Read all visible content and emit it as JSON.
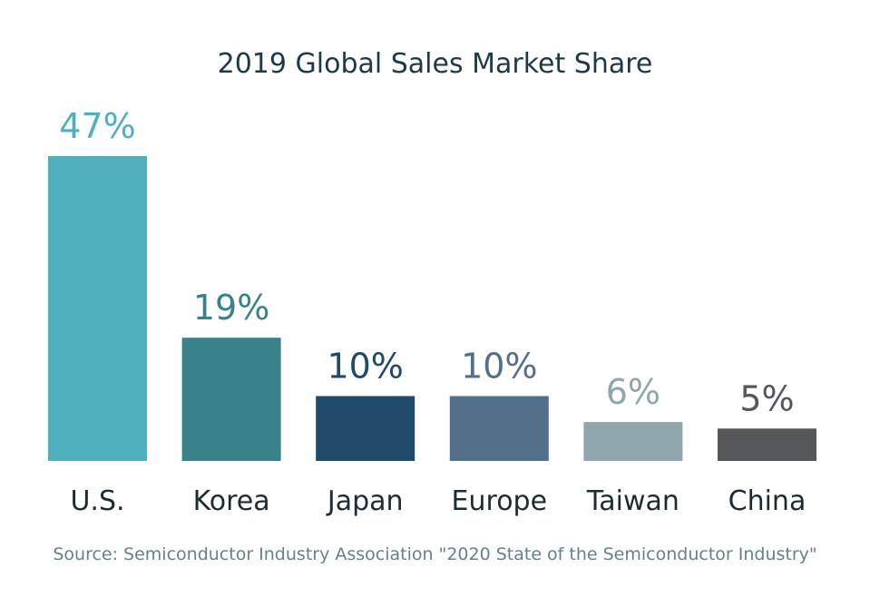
{
  "chart_data": {
    "type": "bar",
    "title": "2019 Global Sales Market Share",
    "categories": [
      "U.S.",
      "Korea",
      "Japan",
      "Europe",
      "Taiwan",
      "China"
    ],
    "values": [
      47,
      19,
      10,
      10,
      6,
      5
    ],
    "value_labels": [
      "47%",
      "19%",
      "10%",
      "10%",
      "6%",
      "5%"
    ],
    "bar_colors": [
      "#4fb0bd",
      "#3a8289",
      "#1f4a69",
      "#53708a",
      "#8fa7ac",
      "#555758"
    ],
    "label_colors": [
      "#4fb0bd",
      "#3a8289",
      "#1f4a69",
      "#53708a",
      "#8fa7ac",
      "#555758"
    ],
    "ylim": [
      0,
      47
    ],
    "xlabel": "",
    "ylabel": "",
    "grid": false,
    "legend": "none"
  },
  "source": "Source: Semiconductor Industry Association \"2020 State of the Semiconductor Industry\""
}
